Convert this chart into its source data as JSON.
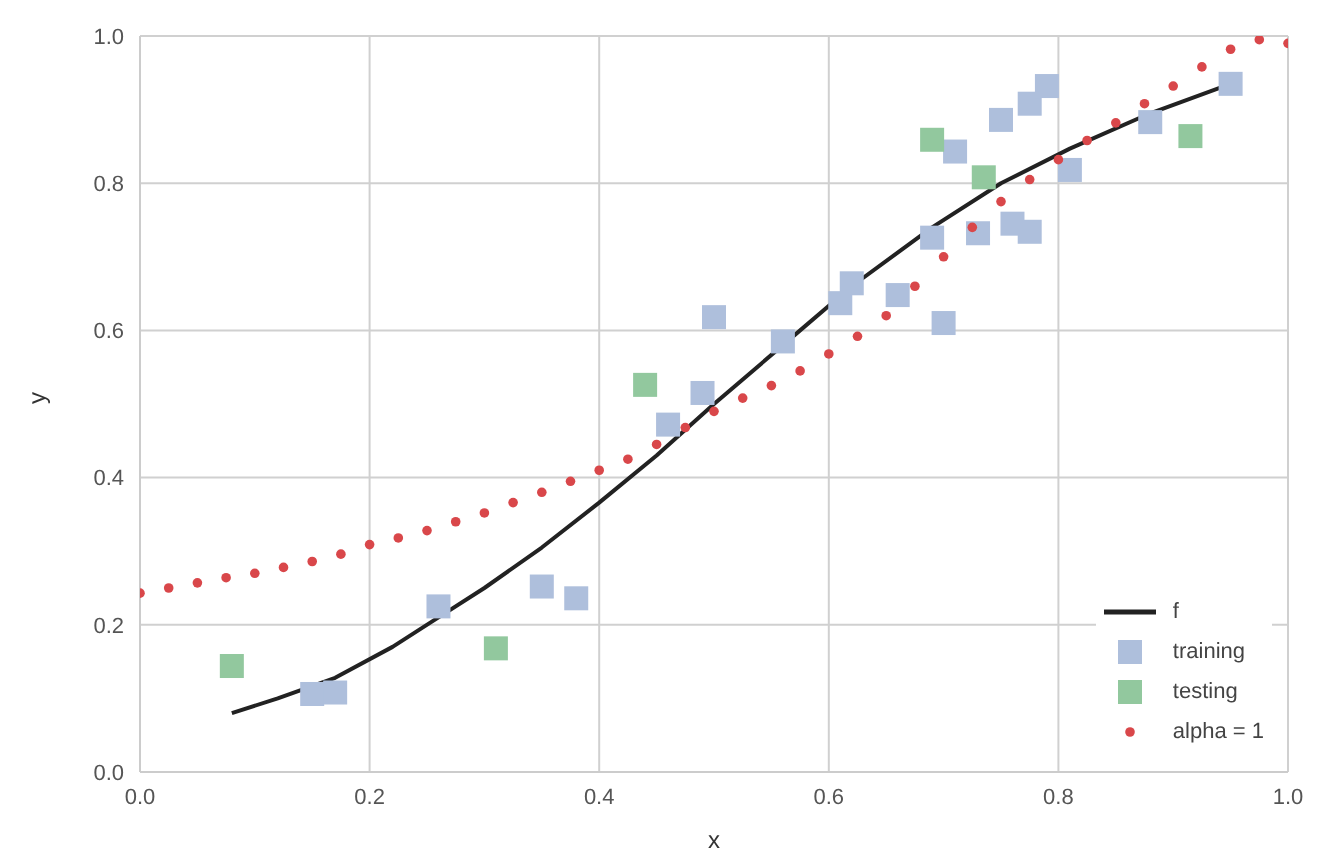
{
  "chart_data": {
    "type": "scatter",
    "xlabel": "x",
    "ylabel": "y",
    "xlim": [
      0,
      1
    ],
    "ylim": [
      0,
      1
    ],
    "xticks": [
      {
        "value": 0,
        "label": "0.0"
      },
      {
        "value": 0.2,
        "label": "0.2"
      },
      {
        "value": 0.4,
        "label": "0.4"
      },
      {
        "value": 0.6,
        "label": "0.6"
      },
      {
        "value": 0.8,
        "label": "0.8"
      },
      {
        "value": 1,
        "label": "1.0"
      }
    ],
    "yticks": [
      {
        "value": 0,
        "label": "0.0"
      },
      {
        "value": 0.2,
        "label": "0.2"
      },
      {
        "value": 0.4,
        "label": "0.4"
      },
      {
        "value": 0.6,
        "label": "0.6"
      },
      {
        "value": 0.8,
        "label": "0.8"
      },
      {
        "value": 1,
        "label": "1.0"
      }
    ],
    "grid": true,
    "legend": "bottom right",
    "series": [
      {
        "name": "f",
        "type": "line",
        "color": "#222222",
        "marker": "none",
        "line_style": "solid",
        "x": [
          0.08,
          0.12,
          0.17,
          0.22,
          0.26,
          0.3,
          0.35,
          0.4,
          0.45,
          0.5,
          0.56,
          0.62,
          0.69,
          0.75,
          0.81,
          0.88,
          0.95
        ],
        "values": [
          0.08,
          0.1,
          0.128,
          0.17,
          0.21,
          0.25,
          0.305,
          0.366,
          0.43,
          0.5,
          0.58,
          0.66,
          0.74,
          0.8,
          0.847,
          0.895,
          0.935
        ]
      },
      {
        "name": "training",
        "color": "#aebfdc",
        "marker": "square",
        "x": [
          0.15,
          0.17,
          0.26,
          0.35,
          0.38,
          0.46,
          0.49,
          0.5,
          0.56,
          0.61,
          0.62,
          0.66,
          0.69,
          0.7,
          0.71,
          0.73,
          0.75,
          0.76,
          0.775,
          0.775,
          0.79,
          0.81,
          0.88,
          0.95
        ],
        "values": [
          0.106,
          0.108,
          0.225,
          0.252,
          0.236,
          0.472,
          0.515,
          0.618,
          0.585,
          0.637,
          0.664,
          0.648,
          0.726,
          0.61,
          0.843,
          0.732,
          0.886,
          0.745,
          0.908,
          0.734,
          0.932,
          0.818,
          0.883,
          0.935
        ]
      },
      {
        "name": "testing",
        "color": "#92c89e",
        "marker": "square",
        "x": [
          0.08,
          0.31,
          0.44,
          0.69,
          0.735,
          0.915
        ],
        "values": [
          0.144,
          0.168,
          0.526,
          0.859,
          0.808,
          0.864
        ]
      },
      {
        "name": "alpha = 1",
        "color": "#d9474a",
        "marker": "circle",
        "x": [
          0,
          0.025,
          0.05,
          0.075,
          0.1,
          0.125,
          0.15,
          0.175,
          0.2,
          0.225,
          0.25,
          0.275,
          0.3,
          0.325,
          0.35,
          0.375,
          0.4,
          0.425,
          0.45,
          0.475,
          0.5,
          0.525,
          0.55,
          0.575,
          0.6,
          0.625,
          0.65,
          0.675,
          0.7,
          0.725,
          0.75,
          0.775,
          0.8,
          0.825,
          0.85,
          0.875,
          0.9,
          0.925,
          0.95,
          0.975,
          1
        ],
        "values": [
          0.243,
          0.25,
          0.257,
          0.264,
          0.27,
          0.278,
          0.286,
          0.296,
          0.309,
          0.318,
          0.328,
          0.34,
          0.352,
          0.366,
          0.38,
          0.395,
          0.41,
          0.425,
          0.445,
          0.468,
          0.49,
          0.508,
          0.525,
          0.545,
          0.568,
          0.592,
          0.62,
          0.66,
          0.7,
          0.74,
          0.775,
          0.805,
          0.832,
          0.858,
          0.882,
          0.908,
          0.932,
          0.958,
          0.982,
          0.995,
          0.99
        ]
      }
    ]
  }
}
